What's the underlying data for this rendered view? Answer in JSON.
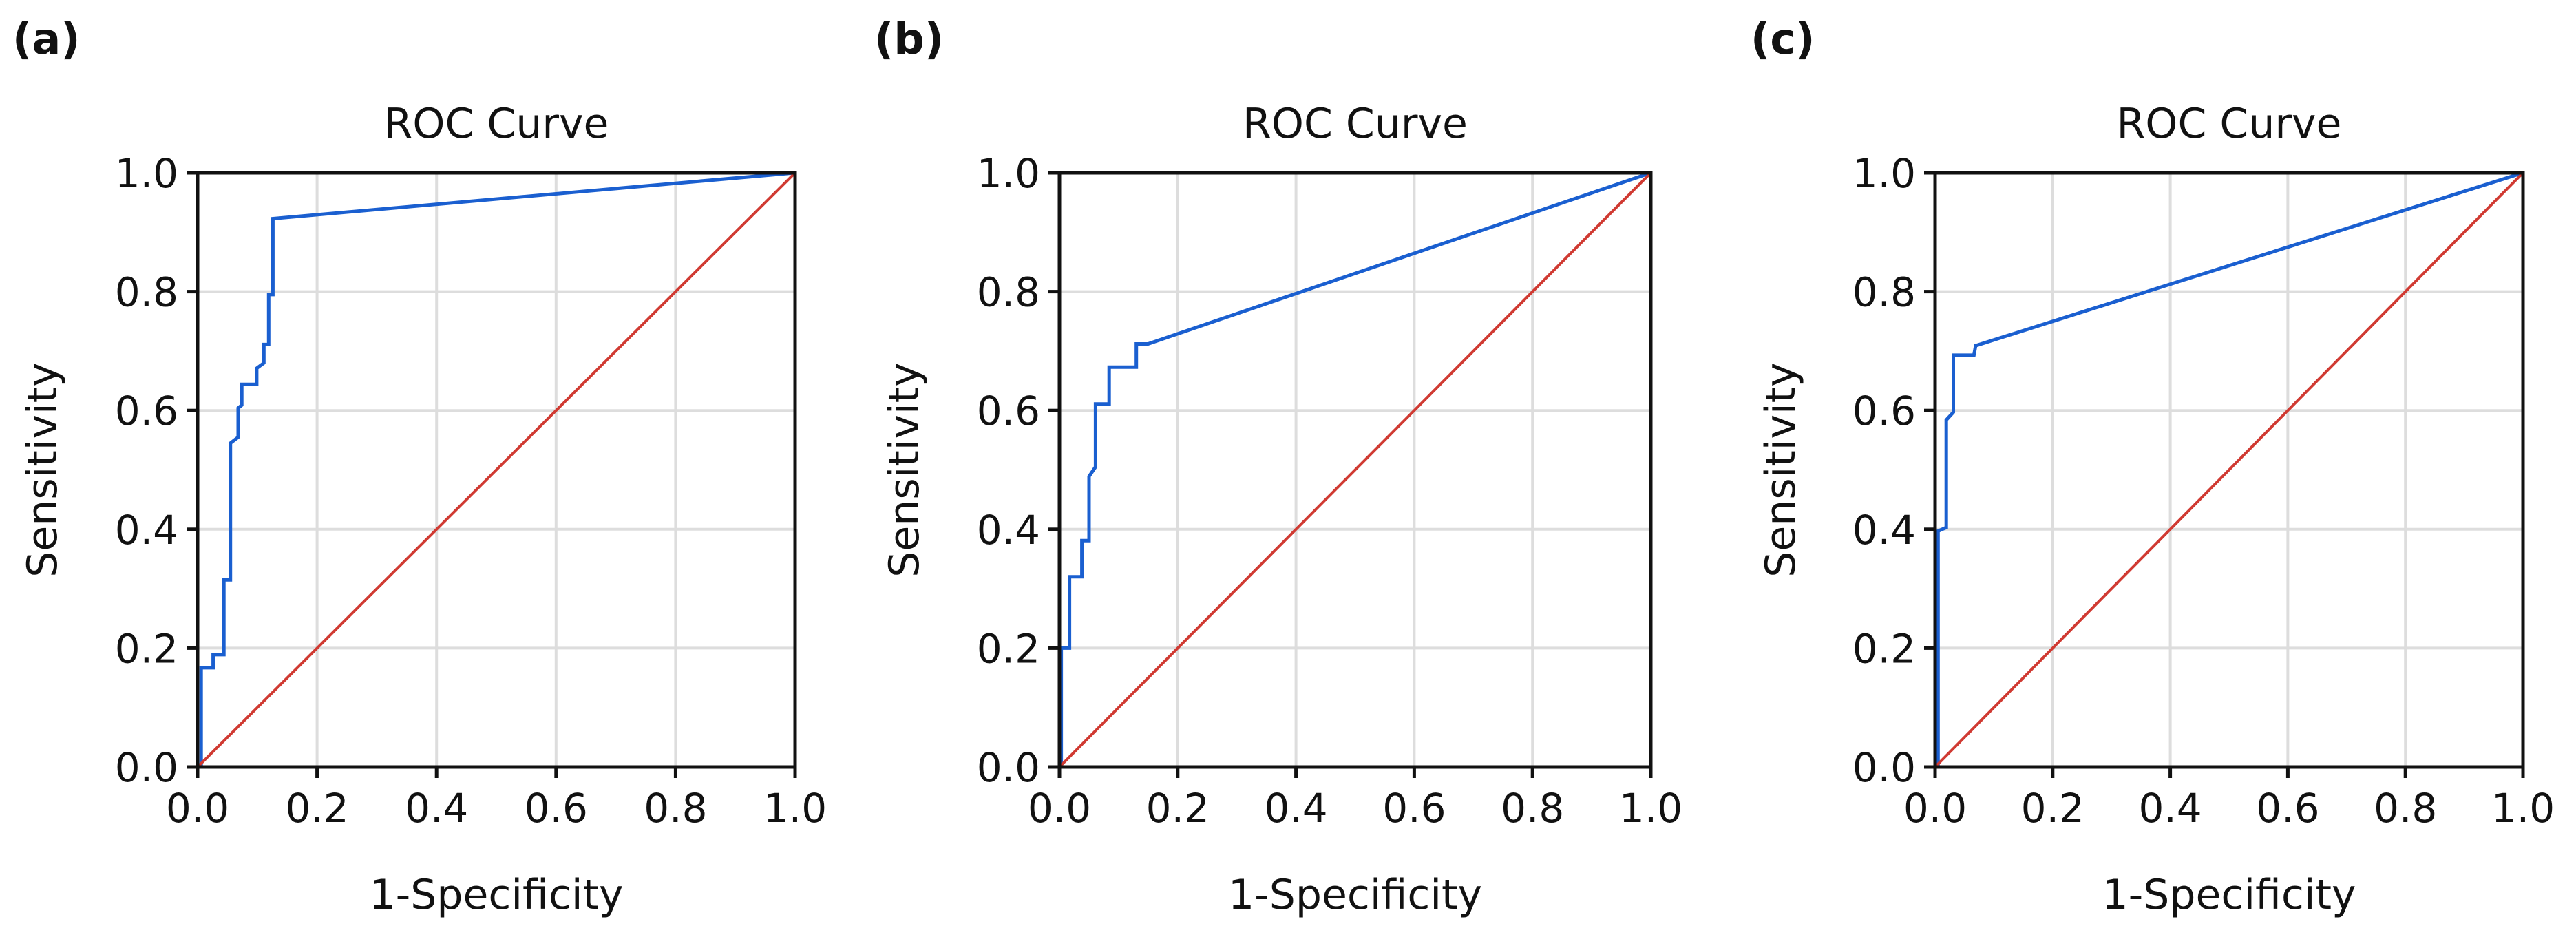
{
  "chart_data": [
    {
      "type": "line",
      "panel_label": "(a)",
      "title": "ROC Curve",
      "xlabel": "1-Specificity",
      "ylabel": "Sensitivity",
      "xlim": [
        0,
        1
      ],
      "ylim": [
        0,
        1
      ],
      "xticks": [
        "0.0",
        "0.2",
        "0.4",
        "0.6",
        "0.8",
        "1.0"
      ],
      "yticks": [
        "0.0",
        "0.2",
        "0.4",
        "0.6",
        "0.8",
        "1.0"
      ],
      "grid": true,
      "series": [
        {
          "name": "ROC",
          "color": "#1a5fd0",
          "x": [
            0,
            0.006,
            0.006,
            0.026,
            0.026,
            0.044,
            0.044,
            0.055,
            0.055,
            0.068,
            0.068,
            0.074,
            0.074,
            0.099,
            0.099,
            0.111,
            0.111,
            0.119,
            0.119,
            0.126,
            0.126,
            1.0
          ],
          "y": [
            0,
            0,
            0.167,
            0.167,
            0.189,
            0.189,
            0.315,
            0.315,
            0.545,
            0.555,
            0.604,
            0.609,
            0.644,
            0.644,
            0.671,
            0.68,
            0.711,
            0.711,
            0.795,
            0.795,
            0.923,
            1.0
          ]
        },
        {
          "name": "Reference",
          "color": "#d03a32",
          "x": [
            0,
            1
          ],
          "y": [
            0,
            1
          ]
        }
      ]
    },
    {
      "type": "line",
      "panel_label": "(b)",
      "title": "ROC Curve",
      "xlabel": "1-Specificity",
      "ylabel": "Sensitivity",
      "xlim": [
        0,
        1
      ],
      "ylim": [
        0,
        1
      ],
      "xticks": [
        "0.0",
        "0.2",
        "0.4",
        "0.6",
        "0.8",
        "1.0"
      ],
      "yticks": [
        "0.0",
        "0.2",
        "0.4",
        "0.6",
        "0.8",
        "1.0"
      ],
      "grid": true,
      "series": [
        {
          "name": "ROC",
          "color": "#1a5fd0",
          "x": [
            0,
            0.003,
            0.003,
            0.017,
            0.017,
            0.038,
            0.038,
            0.05,
            0.05,
            0.061,
            0.061,
            0.084,
            0.084,
            0.13,
            0.13,
            0.15,
            1.0
          ],
          "y": [
            0,
            0,
            0.2,
            0.2,
            0.32,
            0.32,
            0.381,
            0.381,
            0.489,
            0.505,
            0.611,
            0.611,
            0.673,
            0.673,
            0.712,
            0.712,
            1.0
          ]
        },
        {
          "name": "Reference",
          "color": "#d03a32",
          "x": [
            0,
            1
          ],
          "y": [
            0,
            1
          ]
        }
      ]
    },
    {
      "type": "line",
      "panel_label": "(c)",
      "title": "ROC Curve",
      "xlabel": "1-Specificity",
      "ylabel": "Sensitivity",
      "xlim": [
        0,
        1
      ],
      "ylim": [
        0,
        1
      ],
      "xticks": [
        "0.0",
        "0.2",
        "0.4",
        "0.6",
        "0.8",
        "1.0"
      ],
      "yticks": [
        "0.0",
        "0.2",
        "0.4",
        "0.6",
        "0.8",
        "1.0"
      ],
      "grid": true,
      "series": [
        {
          "name": "ROC",
          "color": "#1a5fd0",
          "x": [
            0,
            0.005,
            0.005,
            0.019,
            0.019,
            0.031,
            0.031,
            0.066,
            0.069,
            1.0
          ],
          "y": [
            0,
            0,
            0.397,
            0.403,
            0.584,
            0.597,
            0.693,
            0.693,
            0.709,
            1.0
          ]
        },
        {
          "name": "Reference",
          "color": "#d03a32",
          "x": [
            0,
            1
          ],
          "y": [
            0,
            1
          ]
        }
      ]
    }
  ]
}
